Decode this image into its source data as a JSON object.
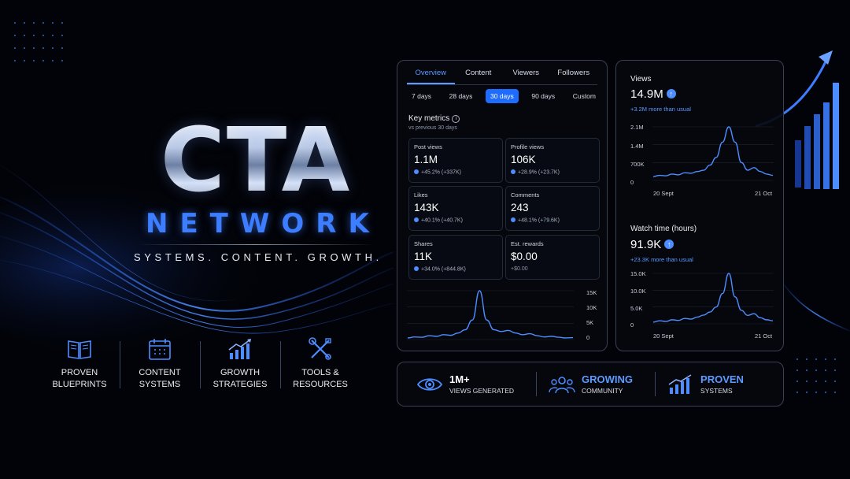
{
  "brand": {
    "title": "CTA",
    "subtitle": "NETWORK",
    "tagline": "SYSTEMS. CONTENT. GROWTH."
  },
  "features": [
    {
      "icon": "book-icon",
      "line1": "PROVEN",
      "line2": "BLUEPRINTS"
    },
    {
      "icon": "calendar-icon",
      "line1": "CONTENT",
      "line2": "SYSTEMS"
    },
    {
      "icon": "growth-chart-icon",
      "line1": "GROWTH",
      "line2": "STRATEGIES"
    },
    {
      "icon": "tools-icon",
      "line1": "TOOLS &",
      "line2": "RESOURCES"
    }
  ],
  "dashboard": {
    "tabs": [
      "Overview",
      "Content",
      "Viewers",
      "Followers"
    ],
    "active_tab": "Overview",
    "ranges": [
      "7 days",
      "28 days",
      "30 days",
      "90 days",
      "Custom"
    ],
    "active_range": "30 days",
    "key_metrics_title": "Key metrics",
    "key_metrics_subtitle": "vs previous 30 days",
    "metrics": [
      {
        "label": "Post views",
        "value": "1.1M",
        "delta": "+45.2% (+337K)"
      },
      {
        "label": "Profile views",
        "value": "106K",
        "delta": "+28.9% (+23.7K)"
      },
      {
        "label": "Likes",
        "value": "143K",
        "delta": "+40.1% (+40.7K)"
      },
      {
        "label": "Comments",
        "value": "243",
        "delta": "+48.1% (+79.6K)"
      },
      {
        "label": "Shares",
        "value": "11K",
        "delta": "+34.0% (+844.8K)"
      },
      {
        "label": "Est. rewards",
        "value": "$0.00",
        "delta": "+$0.00"
      }
    ]
  },
  "views_panel": {
    "label": "Views",
    "value": "14.9M",
    "note": "+3.2M more than usual"
  },
  "watch_panel": {
    "label": "Watch time (hours)",
    "value": "91.9K",
    "note": "+23.3K more than usual"
  },
  "stats": [
    {
      "icon": "eye-icon",
      "line1": "1M+",
      "line2": "VIEWS GENERATED"
    },
    {
      "icon": "community-icon",
      "line1": "GROWING",
      "line2": "COMMUNITY"
    },
    {
      "icon": "proven-chart-icon",
      "line1": "PROVEN",
      "line2": "SYSTEMS"
    }
  ],
  "colors": {
    "accent": "#3d7dff",
    "background": "#020308",
    "panel_border": "#3a4152"
  },
  "chart_data": [
    {
      "type": "line",
      "yticks": [
        "15K",
        "10K",
        "5K",
        "0"
      ],
      "ylim": [
        0,
        15000
      ],
      "values": [
        500,
        800,
        700,
        1200,
        1000,
        1500,
        1300,
        2000,
        3000,
        6000,
        15000,
        6000,
        3000,
        2500,
        2800,
        2000,
        1500,
        1800,
        1200,
        800,
        1000,
        700,
        500,
        600
      ]
    },
    {
      "type": "line",
      "yticks": [
        "2.1M",
        "1.4M",
        "700K",
        "0"
      ],
      "ylim": [
        0,
        2100000
      ],
      "xticks": [
        "20 Sept",
        "21 Oct"
      ],
      "values": [
        150000,
        200000,
        180000,
        250000,
        220000,
        300000,
        280000,
        350000,
        400000,
        600000,
        900000,
        1500000,
        2100000,
        1500000,
        700000,
        400000,
        500000,
        350000,
        250000,
        200000
      ]
    },
    {
      "type": "line",
      "yticks": [
        "15.0K",
        "10.0K",
        "5.0K",
        "0"
      ],
      "ylim": [
        0,
        15000
      ],
      "xticks": [
        "20 Sept",
        "21 Oct"
      ],
      "values": [
        500,
        900,
        700,
        1200,
        1000,
        1600,
        1400,
        2000,
        2600,
        3500,
        5000,
        9000,
        15000,
        8000,
        4000,
        2500,
        3000,
        1800,
        1200,
        900
      ]
    }
  ]
}
